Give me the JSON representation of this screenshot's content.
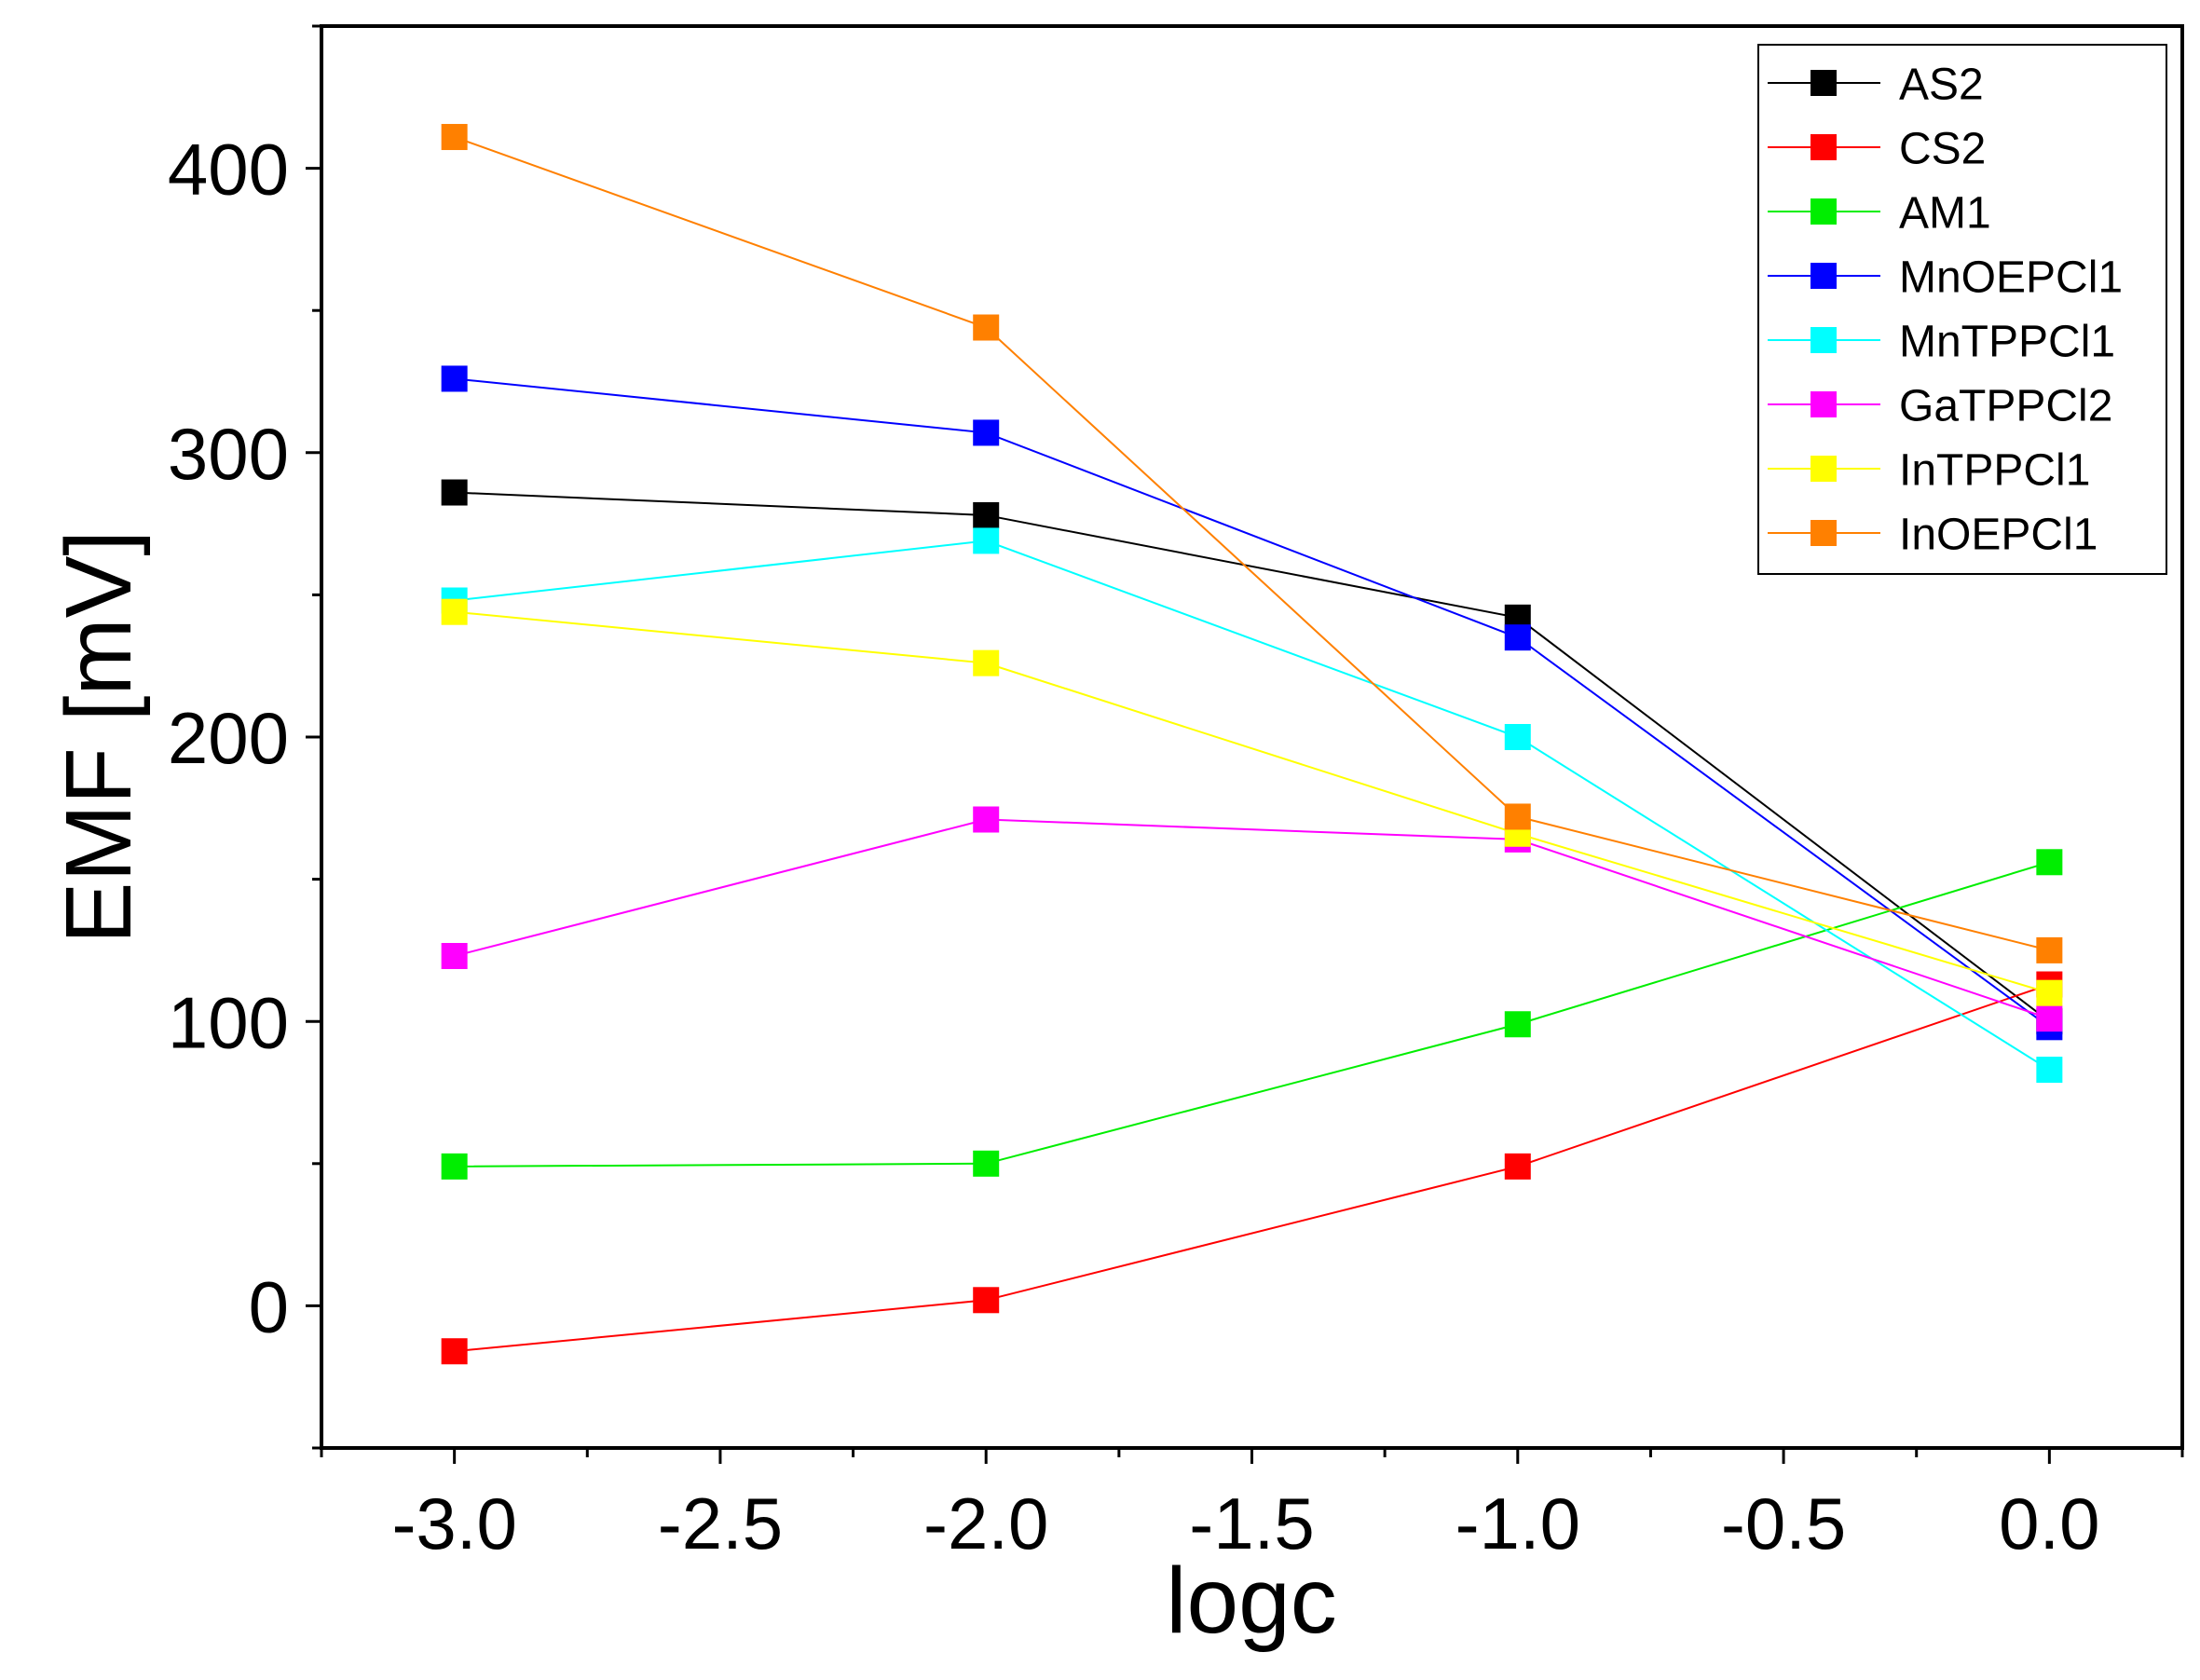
{
  "chart_data": {
    "type": "line",
    "xlabel": "logc",
    "ylabel": "EMF [mV]",
    "xlim": [
      -3.25,
      0.25
    ],
    "ylim": [
      -50,
      450
    ],
    "x_ticks": [
      -3.0,
      -2.5,
      -2.0,
      -1.5,
      -1.0,
      -0.5,
      0.0
    ],
    "x_tick_labels": [
      "-3.0",
      "-2.5",
      "-2.0",
      "-1.5",
      "-1.0",
      "-0.5",
      "0.0"
    ],
    "y_ticks": [
      0,
      100,
      200,
      300,
      400
    ],
    "y_tick_labels": [
      "0",
      "100",
      "200",
      "300",
      "400"
    ],
    "x": [
      -3.0,
      -2.0,
      -1.0,
      0.0
    ],
    "legend_position": "top-right",
    "series": [
      {
        "name": "AS2",
        "color": "#000000",
        "values": [
          286,
          278,
          242,
          100
        ]
      },
      {
        "name": "CS2",
        "color": "#ff0000",
        "values": [
          -16,
          2,
          49,
          113
        ]
      },
      {
        "name": "AM1",
        "color": "#00ee00",
        "values": [
          49,
          50,
          99,
          156
        ]
      },
      {
        "name": "MnOEPCl1",
        "color": "#0000ff",
        "values": [
          326,
          307,
          235,
          98
        ]
      },
      {
        "name": "MnTPPCl1",
        "color": "#00ffff",
        "values": [
          248,
          269,
          200,
          83
        ]
      },
      {
        "name": "GaTPPCl2",
        "color": "#ff00ff",
        "values": [
          123,
          171,
          164,
          101
        ]
      },
      {
        "name": "InTPPCl1",
        "color": "#ffff00",
        "values": [
          244,
          226,
          166,
          110
        ]
      },
      {
        "name": "InOEPCl1",
        "color": "#ff8000",
        "values": [
          411,
          344,
          172,
          125
        ]
      }
    ]
  }
}
